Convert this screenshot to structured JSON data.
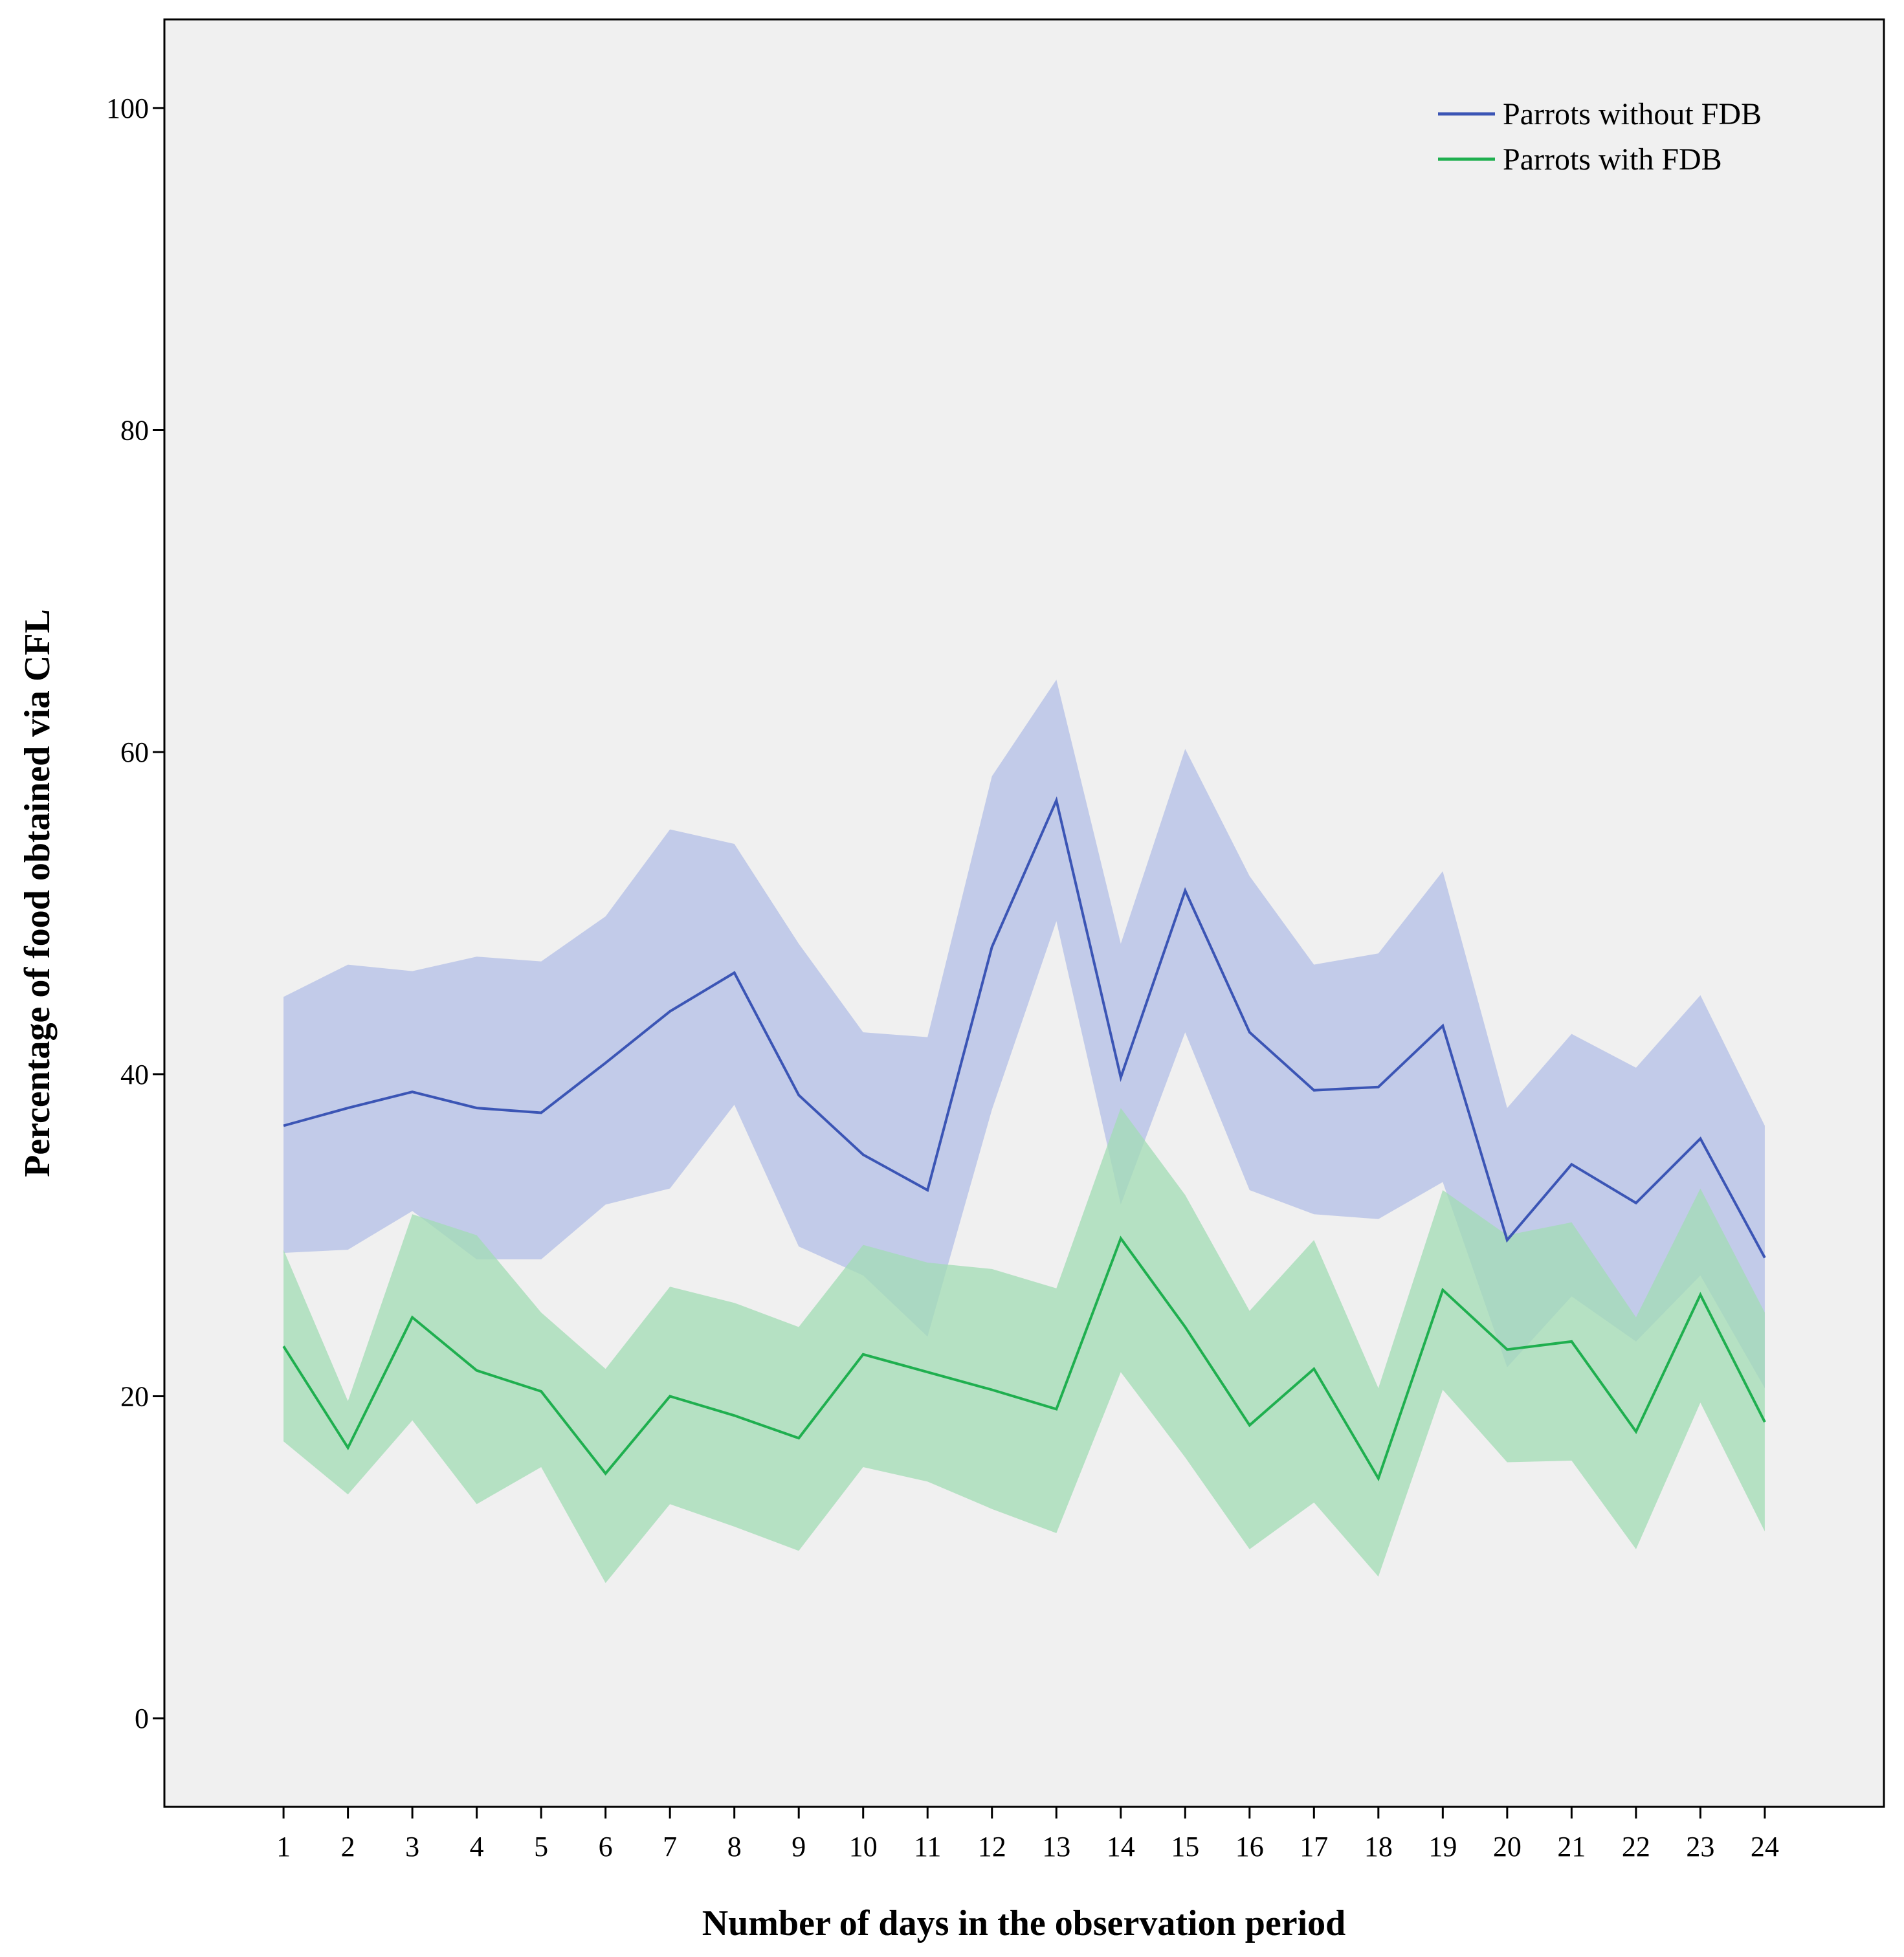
{
  "chart_data": {
    "type": "line",
    "title": "",
    "xlabel": "Number of days in the observation period",
    "ylabel": "Percentage of food obtained via CFL",
    "ylim": [
      -5.5,
      105.5
    ],
    "xlim": [
      -0.85,
      25.85
    ],
    "yticks": [
      0,
      20,
      40,
      60,
      80,
      100
    ],
    "xticks": [
      1,
      2,
      3,
      4,
      5,
      6,
      7,
      8,
      9,
      10,
      11,
      12,
      13,
      14,
      15,
      16,
      17,
      18,
      19,
      20,
      21,
      22,
      23,
      24
    ],
    "grid": false,
    "legend_position": "top-right",
    "series": [
      {
        "name": "Parrots without FDB",
        "color": "#3b55b5",
        "band_color": "#bcc7e8",
        "x": [
          1,
          2,
          3,
          4,
          5,
          6,
          7,
          8,
          9,
          10,
          11,
          12,
          13,
          14,
          15,
          16,
          17,
          18,
          19,
          20,
          21,
          22,
          23,
          24
        ],
        "values": [
          36.8,
          37.9,
          38.9,
          37.9,
          37.6,
          40.7,
          43.9,
          46.3,
          38.7,
          35.0,
          32.8,
          47.9,
          57.0,
          39.8,
          51.4,
          42.6,
          39.0,
          39.2,
          43.0,
          29.7,
          34.4,
          32.0,
          36.0,
          28.6
        ],
        "lower": [
          28.9,
          29.1,
          31.5,
          28.5,
          28.5,
          31.9,
          32.9,
          38.1,
          29.3,
          27.5,
          23.7,
          37.8,
          49.5,
          31.9,
          42.6,
          32.8,
          31.3,
          31.0,
          33.3,
          21.8,
          26.2,
          23.4,
          27.5,
          20.5
        ],
        "upper": [
          44.8,
          46.8,
          46.4,
          47.3,
          47.0,
          49.8,
          55.2,
          54.3,
          48.1,
          42.6,
          42.3,
          58.5,
          64.5,
          48.1,
          60.2,
          52.3,
          46.8,
          47.5,
          52.6,
          37.9,
          42.5,
          40.4,
          44.9,
          36.8
        ]
      },
      {
        "name": "Parrots with FDB",
        "color": "#1faf4f",
        "band_color": "#a2dcb4",
        "x": [
          1,
          2,
          3,
          4,
          5,
          6,
          7,
          8,
          9,
          10,
          11,
          12,
          13,
          14,
          15,
          16,
          17,
          18,
          19,
          20,
          21,
          22,
          23,
          24
        ],
        "values": [
          23.1,
          16.8,
          24.9,
          21.6,
          20.3,
          15.2,
          20.0,
          18.8,
          17.4,
          22.6,
          21.5,
          20.4,
          19.2,
          29.8,
          24.3,
          18.2,
          21.7,
          14.9,
          26.6,
          22.9,
          23.4,
          17.8,
          26.3,
          18.4
        ],
        "lower": [
          17.2,
          13.9,
          18.5,
          13.3,
          15.6,
          8.4,
          13.3,
          11.9,
          10.4,
          15.6,
          14.7,
          13.0,
          11.5,
          21.5,
          16.2,
          10.5,
          13.4,
          8.8,
          20.4,
          15.9,
          16.0,
          10.5,
          19.6,
          11.6
        ],
        "upper": [
          29.1,
          19.7,
          31.3,
          30.0,
          25.2,
          21.7,
          26.8,
          25.8,
          24.3,
          29.4,
          28.3,
          27.9,
          26.7,
          37.9,
          32.5,
          25.3,
          29.7,
          20.5,
          32.8,
          30.0,
          30.8,
          24.9,
          32.9,
          25.2
        ]
      }
    ]
  }
}
